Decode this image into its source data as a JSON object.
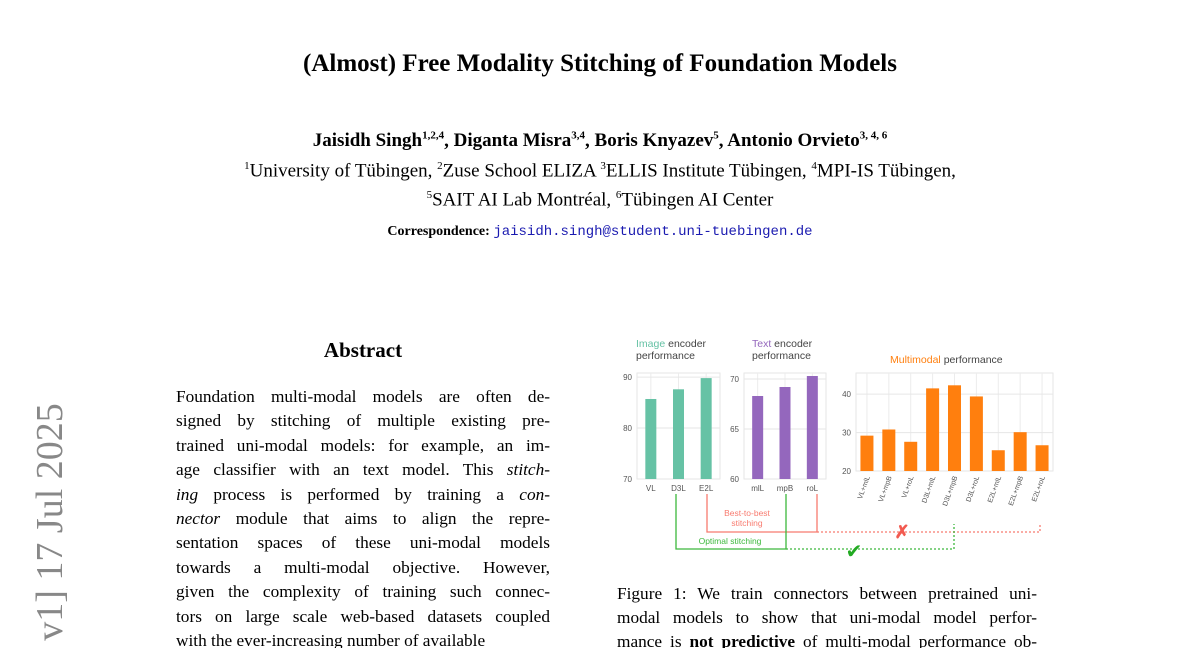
{
  "title": "(Almost) Free Modality Stitching of Foundation Models",
  "authors": [
    {
      "name": "Jaisidh Singh",
      "sup": "1,2,4"
    },
    {
      "name": "Diganta Misra",
      "sup": "3,4"
    },
    {
      "name": "Boris Knyazev",
      "sup": "5"
    },
    {
      "name": "Antonio Orvieto",
      "sup": "3, 4, 6"
    }
  ],
  "affiliations": [
    {
      "sup": "1",
      "name": "University of Tübingen, "
    },
    {
      "sup": "2",
      "name": "Zuse School ELIZA "
    },
    {
      "sup": "3",
      "name": "ELLIS Institute Tübingen, "
    },
    {
      "sup": "4",
      "name": "MPI-IS Tübingen,"
    },
    {
      "sup": "5",
      "name": "SAIT AI Lab Montréal, "
    },
    {
      "sup": "6",
      "name": "Tübingen AI Center"
    }
  ],
  "correspondence_label": "Correspondence:",
  "correspondence_email": "jaisidh.singh@student.uni-tuebingen.de",
  "arxiv_stamp": "v1] 17 Jul 2025",
  "abstract": {
    "heading": "Abstract",
    "lines": [
      "Foundation multi-modal models are often de-",
      "signed by stitching of multiple existing pre-",
      "trained uni-modal models: for example, an im-",
      "age classifier with an text model. This stitch-",
      "ing process is performed by training a con-",
      "nector module that aims to align the repre-",
      "sentation spaces of these uni-modal models",
      "towards a multi-modal objective. However,",
      "given the complexity of training such connec-",
      "tors on large scale web-based datasets coupled",
      "with the ever-increasing number of available"
    ]
  },
  "caption": {
    "lines": [
      "Figure 1: We train connectors between pretrained uni-",
      "modal models to show that uni-modal model perfor-",
      "mance is not predictive of multi-modal performance ob-"
    ]
  },
  "colors": {
    "image": "#66c2a5",
    "text": "#9467bd",
    "multi": "#ff7f0e",
    "best": "#f87b6f",
    "optimal": "#3cb83c"
  },
  "chart_data": [
    {
      "type": "bar",
      "title_colored": "Image",
      "title_rest": " encoder",
      "title_line2": "performance",
      "categories": [
        "VL",
        "D3L",
        "E2L"
      ],
      "values": [
        85.7,
        87.6,
        89.8
      ],
      "ylim": [
        70,
        90.8
      ],
      "yticks": [
        70,
        80,
        90
      ]
    },
    {
      "type": "bar",
      "title_colored": "Text",
      "title_rest": " encoder",
      "title_line2": "performance",
      "categories": [
        "mlL",
        "mpB",
        "roL"
      ],
      "values": [
        68.3,
        69.2,
        70.3
      ],
      "ylim": [
        60,
        70.6
      ],
      "yticks": [
        60,
        65,
        70
      ]
    },
    {
      "type": "bar",
      "title_colored": "Multimodal",
      "title_rest": " performance",
      "title_line2": "",
      "categories": [
        "VL+mlL",
        "VL+mpB",
        "VL+roL",
        "D3L+mlL",
        "D3L+mpB",
        "D3L+roL",
        "E2L+mlL",
        "E2L+mpB",
        "E2L+roL"
      ],
      "values": [
        29.2,
        30.8,
        27.6,
        41.5,
        42.3,
        39.4,
        25.4,
        30.1,
        26.7
      ],
      "ylim": [
        20,
        45.5
      ],
      "yticks": [
        20,
        30,
        40
      ]
    }
  ],
  "annotations": {
    "best_to_best": [
      "Best-to-best",
      "stitching"
    ],
    "optimal": "Optimal stitching",
    "cross": "✗",
    "check": "✔"
  }
}
